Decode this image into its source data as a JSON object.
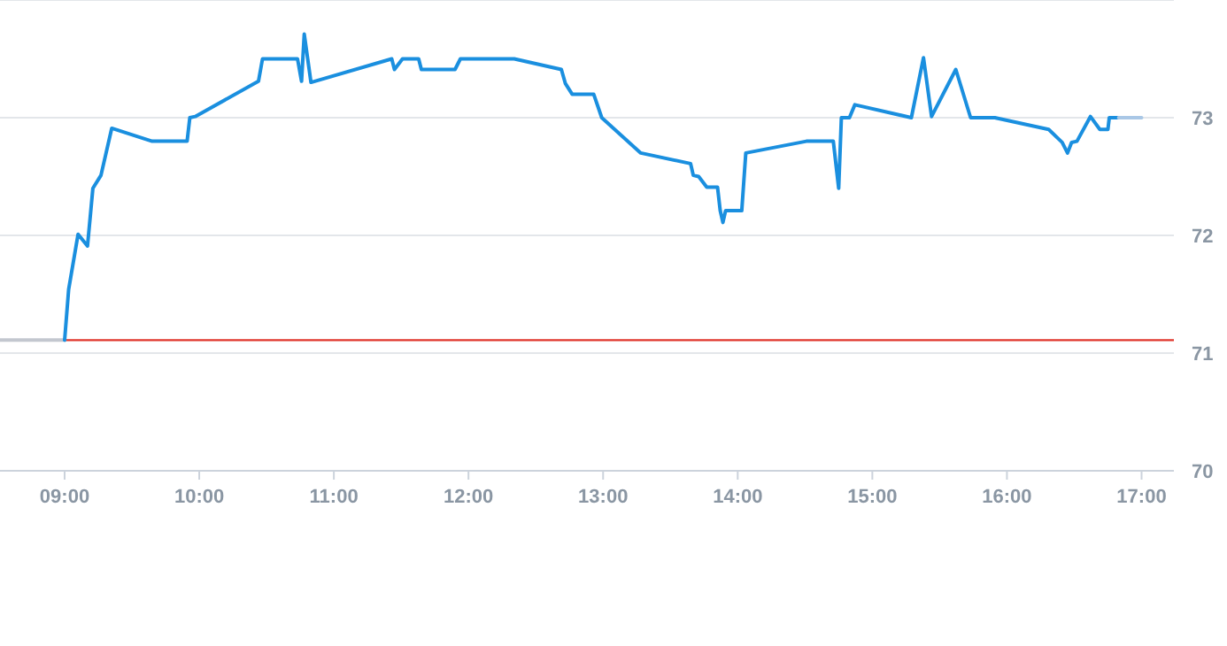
{
  "chart_data": {
    "type": "line",
    "xlim": [
      8.52,
      17.24
    ],
    "ylim": [
      70,
      74
    ],
    "xticks": [
      {
        "value": 9,
        "label": "09:00"
      },
      {
        "value": 10,
        "label": "10:00"
      },
      {
        "value": 11,
        "label": "11:00"
      },
      {
        "value": 12,
        "label": "12:00"
      },
      {
        "value": 13,
        "label": "13:00"
      },
      {
        "value": 14,
        "label": "14:00"
      },
      {
        "value": 15,
        "label": "15:00"
      },
      {
        "value": 16,
        "label": "16:00"
      },
      {
        "value": 17,
        "label": "17:00"
      }
    ],
    "yticks": [
      70,
      71,
      72,
      73,
      {
        "value": 74,
        "label": null
      }
    ],
    "grid": "y",
    "marker": "none",
    "line_style": "solid",
    "ref_lines": [
      {
        "axis": "y",
        "value": 71.11,
        "color": "#e0362c"
      }
    ],
    "series": [
      {
        "color": "#c3c7cf",
        "x": [
          8.52,
          9.0
        ],
        "values": [
          71.11,
          71.11
        ]
      },
      {
        "color": "#1a8fdf",
        "x": [
          9.0,
          9.03,
          9.1,
          9.17,
          9.21,
          9.27,
          9.35,
          9.65,
          9.91,
          9.93,
          9.97,
          10.44,
          10.47,
          10.73,
          10.76,
          10.78,
          10.83,
          11.43,
          11.45,
          11.51,
          11.63,
          11.65,
          11.9,
          11.94,
          12.34,
          12.69,
          12.72,
          12.77,
          12.93,
          12.99,
          13.28,
          13.65,
          13.67,
          13.71,
          13.77,
          13.85,
          13.87,
          13.89,
          13.91,
          14.03,
          14.06,
          14.51,
          14.71,
          14.75,
          14.77,
          14.83,
          14.87,
          15.29,
          15.38,
          15.44,
          15.62,
          15.73,
          15.91,
          16.31,
          16.41,
          16.45,
          16.48,
          16.52,
          16.62,
          16.69,
          16.75,
          16.76,
          16.83
        ],
        "values": [
          71.11,
          71.54,
          72.01,
          71.91,
          72.4,
          72.51,
          72.91,
          72.8,
          72.8,
          73.0,
          73.01,
          73.31,
          73.5,
          73.5,
          73.31,
          73.71,
          73.3,
          73.5,
          73.41,
          73.5,
          73.5,
          73.41,
          73.41,
          73.5,
          73.5,
          73.41,
          73.29,
          73.2,
          73.2,
          73.0,
          72.7,
          72.61,
          72.51,
          72.5,
          72.41,
          72.41,
          72.21,
          72.11,
          72.21,
          72.21,
          72.7,
          72.8,
          72.8,
          72.4,
          73.0,
          73.0,
          73.11,
          73.0,
          73.51,
          73.01,
          73.41,
          73.0,
          73.0,
          72.9,
          72.79,
          72.7,
          72.79,
          72.8,
          73.01,
          72.9,
          72.9,
          73.0,
          73.0
        ]
      },
      {
        "color": "#a9c7e6",
        "x": [
          16.83,
          17.0
        ],
        "values": [
          73.0,
          73.0
        ]
      }
    ]
  }
}
